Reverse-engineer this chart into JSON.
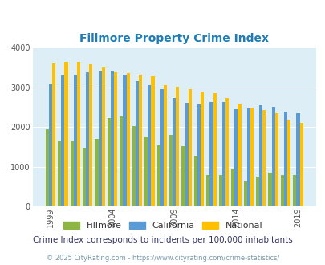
{
  "title": "Fillmore Property Crime Index",
  "subtitle": "Crime Index corresponds to incidents per 100,000 inhabitants",
  "footer": "© 2025 CityRating.com - https://www.cityrating.com/crime-statistics/",
  "years": [
    1999,
    2000,
    2001,
    2002,
    2003,
    2004,
    2005,
    2006,
    2007,
    2008,
    2009,
    2010,
    2011,
    2012,
    2013,
    2014,
    2015,
    2016,
    2017,
    2018,
    2019
  ],
  "fillmore": [
    1950,
    1650,
    1650,
    1480,
    1700,
    2240,
    2270,
    2030,
    1770,
    1540,
    1810,
    1530,
    1290,
    800,
    790,
    940,
    640,
    760,
    860,
    790,
    790
  ],
  "california": [
    3100,
    3310,
    3330,
    3380,
    3430,
    3430,
    3330,
    3160,
    3050,
    2950,
    2730,
    2620,
    2570,
    2630,
    2640,
    2450,
    2470,
    2560,
    2510,
    2390,
    2360
  ],
  "national": [
    3600,
    3650,
    3640,
    3590,
    3510,
    3380,
    3370,
    3330,
    3280,
    3050,
    3010,
    2950,
    2890,
    2860,
    2740,
    2600,
    2490,
    2440,
    2350,
    2200,
    2100
  ],
  "bar_width": 0.27,
  "ylim": [
    0,
    4000
  ],
  "yticks": [
    0,
    1000,
    2000,
    3000,
    4000
  ],
  "xtick_years": [
    1999,
    2004,
    2009,
    2014,
    2019
  ],
  "color_fillmore": "#8db544",
  "color_california": "#5b9bd5",
  "color_national": "#ffc000",
  "plot_bg": "#ddeef6",
  "title_color": "#1f7db5",
  "subtitle_color": "#333366",
  "footer_color": "#7799aa",
  "legend_text_color": "#333333"
}
